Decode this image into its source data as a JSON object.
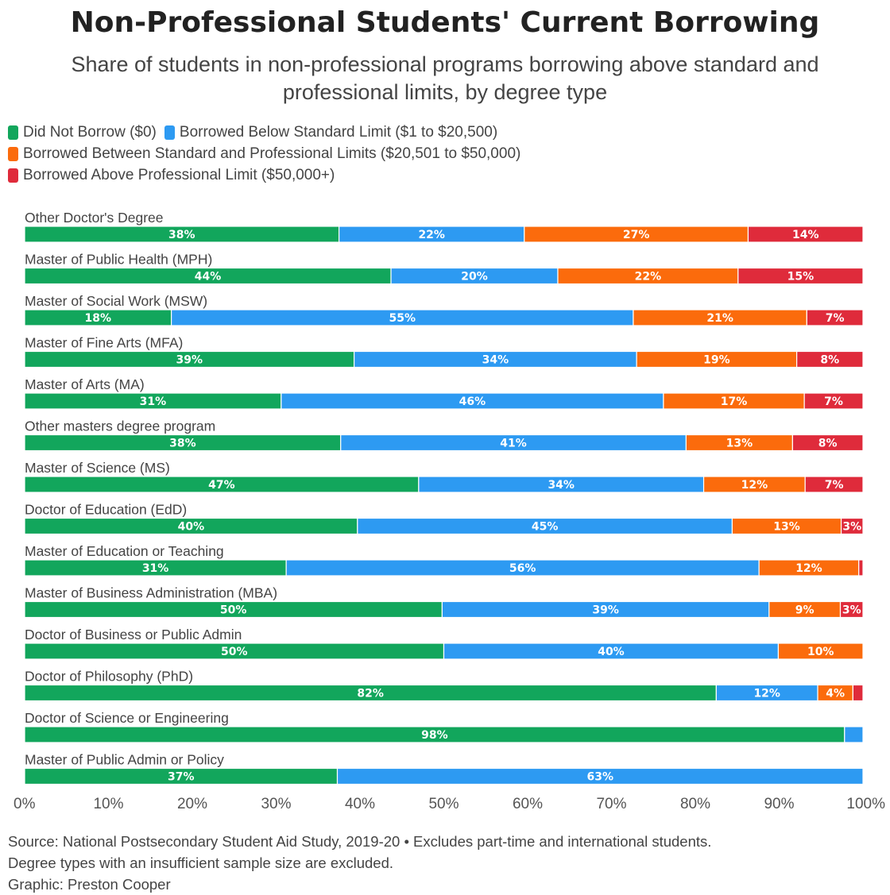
{
  "title": "Non-Professional Students' Current Borrowing",
  "subtitle": "Share of students in non-professional programs borrowing above standard and professional limits, by degree type",
  "colors": {
    "did_not_borrow": "#12a65c",
    "below_standard": "#2d9af2",
    "between_limits": "#fb6b0c",
    "above_professional": "#df2b3b"
  },
  "legend": [
    {
      "label": "Did Not Borrow ($0)",
      "color": "#12a65c"
    },
    {
      "label": "Borrowed Below Standard Limit ($1 to $20,500)",
      "color": "#2d9af2"
    },
    {
      "label": "Borrowed Between Standard and Professional Limits ($20,501 to $50,000)",
      "color": "#fb6b0c"
    },
    {
      "label": "Borrowed Above Professional Limit ($50,000+)",
      "color": "#df2b3b"
    }
  ],
  "chart_data": {
    "type": "bar",
    "orientation": "horizontal",
    "stacked": true,
    "categories": [
      "Other Doctor's Degree",
      "Master of Public Health (MPH)",
      "Master of Social Work (MSW)",
      "Master of Fine Arts (MFA)",
      "Master of Arts (MA)",
      "Other masters degree program",
      "Master of Science (MS)",
      "Doctor of Education (EdD)",
      "Master of Education or Teaching",
      "Master of Business Administration (MBA)",
      "Doctor of Business or Public Admin",
      "Doctor of Philosophy (PhD)",
      "Doctor of Science or Engineering",
      "Master of Public Admin or Policy"
    ],
    "series": [
      {
        "name": "Did Not Borrow ($0)",
        "color": "#12a65c",
        "values": [
          37.5,
          43.7,
          17.5,
          39.3,
          30.6,
          37.7,
          47.0,
          39.7,
          31.2,
          49.8,
          50.0,
          82.5,
          97.8,
          37.3
        ],
        "labels": [
          "38%",
          "44%",
          "18%",
          "39%",
          "31%",
          "38%",
          "47%",
          "40%",
          "31%",
          "50%",
          "50%",
          "82%",
          "98%",
          "37%"
        ]
      },
      {
        "name": "Borrowed Below Standard Limit ($1 to $20,500)",
        "color": "#2d9af2",
        "values": [
          22.1,
          19.9,
          55.1,
          33.7,
          45.6,
          41.2,
          34.0,
          44.7,
          56.4,
          39.0,
          39.9,
          12.1,
          2.2,
          62.7
        ],
        "labels": [
          "22%",
          "20%",
          "55%",
          "34%",
          "46%",
          "41%",
          "34%",
          "45%",
          "56%",
          "39%",
          "40%",
          "12%",
          "",
          "63%"
        ]
      },
      {
        "name": "Borrowed Between Standard and Professional Limits ($20,501 to $50,000)",
        "color": "#fb6b0c",
        "values": [
          26.7,
          21.5,
          20.7,
          19.1,
          16.8,
          12.7,
          12.1,
          13.0,
          11.9,
          8.5,
          10.1,
          4.2,
          0,
          0
        ],
        "labels": [
          "27%",
          "22%",
          "21%",
          "19%",
          "17%",
          "13%",
          "12%",
          "13%",
          "12%",
          "9%",
          "10%",
          "4%",
          "",
          ""
        ]
      },
      {
        "name": "Borrowed Above Professional Limit ($50,000+)",
        "color": "#df2b3b",
        "values": [
          13.7,
          14.9,
          6.7,
          7.9,
          7.0,
          8.4,
          6.9,
          2.6,
          0.5,
          2.7,
          0,
          1.2,
          0,
          0
        ],
        "labels": [
          "14%",
          "15%",
          "7%",
          "8%",
          "7%",
          "8%",
          "7%",
          "3%",
          "",
          "3%",
          "",
          "",
          "",
          ""
        ]
      }
    ],
    "xlim": [
      0,
      100
    ],
    "xticks": [
      "0%",
      "10%",
      "20%",
      "30%",
      "40%",
      "50%",
      "60%",
      "70%",
      "80%",
      "90%",
      "100%"
    ],
    "xlabel": "",
    "ylabel": "",
    "grid": false
  },
  "footer": {
    "source": "Source: National Postsecondary Student Aid Study, 2019-20 • Excludes part-time and international students.",
    "note": "Degree types with an insufficient sample size are excluded.",
    "credit": "Graphic: Preston Cooper"
  }
}
